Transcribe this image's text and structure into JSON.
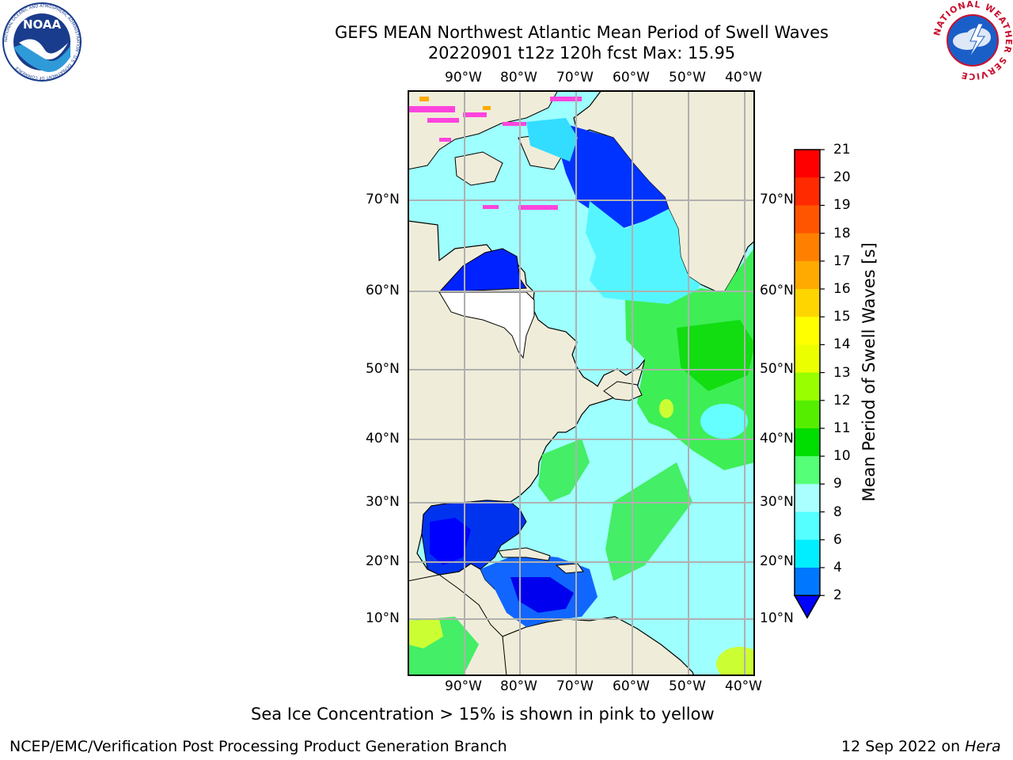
{
  "header": {
    "title_line1": "GEFS MEAN Northwest Atlantic Mean Period of Swell Waves",
    "title_line2": "20220901 t12z 120h fcst   Max: 15.95"
  },
  "logos": {
    "left": {
      "icon": "noaa-logo",
      "text": "NOAA",
      "ring_text": "NATIONAL OCEANIC AND ATMOSPHERIC ADMINISTRATION · U.S. DEPARTMENT OF COMMERCE"
    },
    "right": {
      "icon": "nws-logo",
      "ring_text": "NATIONAL WEATHER SERVICE"
    }
  },
  "map": {
    "lon_labels": [
      "90°W",
      "80°W",
      "70°W",
      "60°W",
      "50°W",
      "40°W"
    ],
    "lat_labels": [
      "70°N",
      "60°N",
      "50°N",
      "40°N",
      "30°N",
      "20°N",
      "10°N"
    ],
    "colors": {
      "land": "#efedd9",
      "ocean_low": "#0000ff",
      "ocean_mid": "#66ffff",
      "ocean_high": "#33ee33",
      "ice": "#ff44dd",
      "grid": "#b0b0b0"
    }
  },
  "colorbar": {
    "title": "Mean Period of Swell Waves [s]",
    "ticks": [
      "21",
      "20",
      "19",
      "18",
      "17",
      "16",
      "15",
      "14",
      "13",
      "12",
      "11",
      "10",
      "9",
      "8",
      "6",
      "4",
      "2"
    ],
    "colors": [
      "#ff0000",
      "#ff2a00",
      "#ff5500",
      "#ff8000",
      "#ffaa00",
      "#ffd500",
      "#ffff00",
      "#ebff00",
      "#ccff00",
      "#99ff00",
      "#55ee00",
      "#00dd00",
      "#55ff77",
      "#aaffff",
      "#55ffff",
      "#00eeff",
      "#0077ff",
      "#0000ee"
    ],
    "extend_color": "#0000ff"
  },
  "footer": {
    "note": "Sea Ice Concentration > 15% is shown in pink to yellow",
    "credit": "NCEP/EMC/Verification Post Processing Product Generation Branch",
    "date_prefix": "12 Sep 2022 on ",
    "machine": "Hera"
  }
}
